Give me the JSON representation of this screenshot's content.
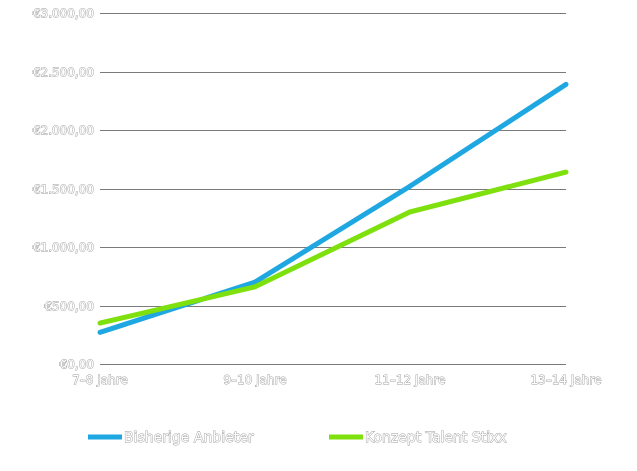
{
  "chart_data": {
    "type": "line",
    "title": "",
    "xlabel": "",
    "ylabel": "",
    "categories": [
      "7–8 Jahre",
      "9–10 Jahre",
      "11–12 Jahre",
      "13–14 Jahre"
    ],
    "series": [
      {
        "name": "Bisherige Anbieter",
        "color": "#1ea7e1",
        "values": [
          270,
          700,
          1520,
          2390
        ]
      },
      {
        "name": "Konzept Talent Stixx",
        "color": "#7ee00c",
        "values": [
          350,
          660,
          1300,
          1640
        ]
      }
    ],
    "ylim": [
      0,
      3000
    ],
    "yticks": [
      0,
      500,
      1000,
      1500,
      2000,
      2500,
      3000
    ],
    "ytick_labels": [
      "€0,00",
      "€500,00",
      "€1.000,00",
      "€1.500,00",
      "€2.000,00",
      "€2.500,00",
      "€3.000,00"
    ],
    "grid": true,
    "grid_color": "#7a7a7a",
    "legend_position": "bottom-center"
  }
}
